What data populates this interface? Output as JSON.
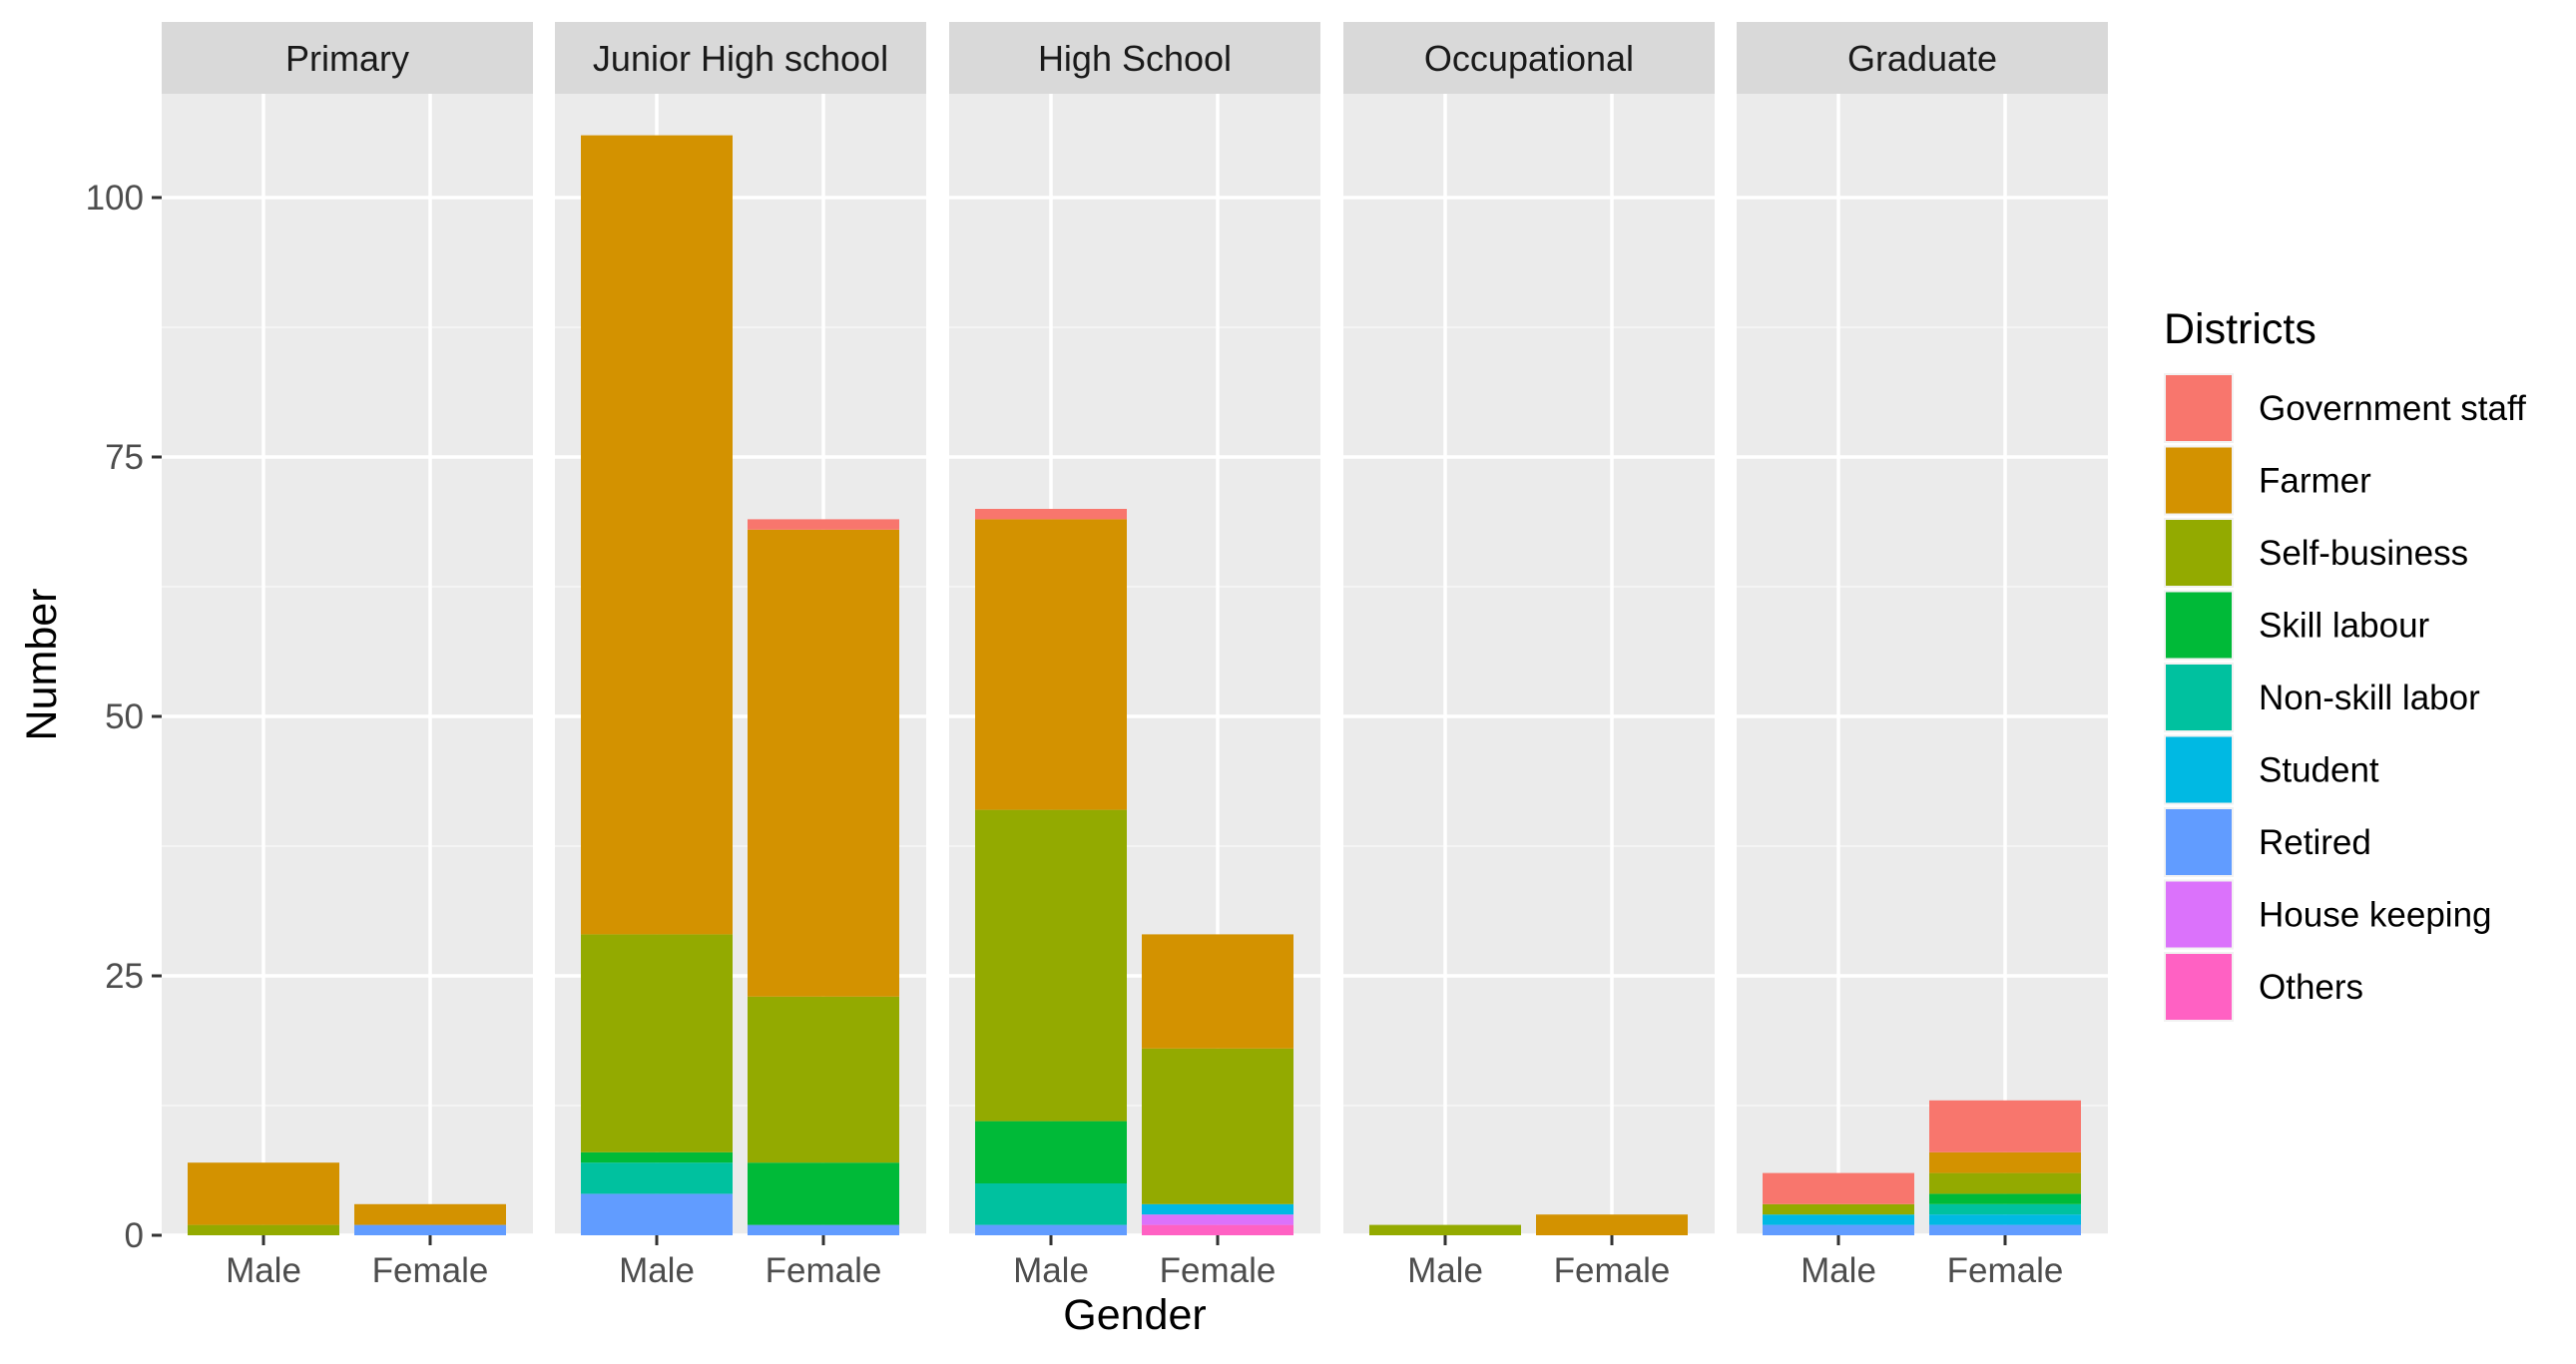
{
  "chart_data": {
    "type": "bar",
    "stacked": true,
    "facet_labels": [
      "Primary",
      "Junior High school",
      "High School",
      "Occupational",
      "Graduate"
    ],
    "categories": [
      "Male",
      "Female"
    ],
    "xlabel": "Gender",
    "ylabel": "Number",
    "ylim": [
      0,
      110
    ],
    "yticks": [
      0,
      25,
      50,
      75,
      100
    ],
    "yticklabels": [
      "0",
      "25",
      "50",
      "75",
      "100"
    ],
    "grid": true,
    "legend": {
      "title": "Districts",
      "placement": "right",
      "entries": [
        "Government staff",
        "Farmer",
        "Self-business",
        "Skill labour",
        "Non-skill labor",
        "Student",
        "Retired",
        "House keeping",
        "Others"
      ]
    },
    "colors": [
      "#F8766D",
      "#D39200",
      "#93AA00",
      "#00BA38",
      "#00C19F",
      "#00B9E3",
      "#619CFF",
      "#DB72FB",
      "#FF61C3"
    ],
    "facets": [
      {
        "label": "Primary",
        "bars": [
          {
            "x": "Male",
            "values": [
              0,
              6,
              1,
              0,
              0,
              0,
              0,
              0,
              0
            ]
          },
          {
            "x": "Female",
            "values": [
              0,
              2,
              0,
              0,
              0,
              0,
              1,
              0,
              0
            ]
          }
        ]
      },
      {
        "label": "Junior High school",
        "bars": [
          {
            "x": "Male",
            "values": [
              0,
              77,
              21,
              1,
              3,
              0,
              4,
              0,
              0
            ]
          },
          {
            "x": "Female",
            "values": [
              1,
              45,
              16,
              6,
              0,
              0,
              1,
              0,
              0
            ]
          }
        ]
      },
      {
        "label": "High School",
        "bars": [
          {
            "x": "Male",
            "values": [
              1,
              28,
              30,
              6,
              4,
              0,
              1,
              0,
              0
            ]
          },
          {
            "x": "Female",
            "values": [
              0,
              11,
              15,
              0,
              0,
              1,
              0,
              1,
              1
            ]
          }
        ]
      },
      {
        "label": "Occupational",
        "bars": [
          {
            "x": "Male",
            "values": [
              0,
              0,
              1,
              0,
              0,
              0,
              0,
              0,
              0
            ]
          },
          {
            "x": "Female",
            "values": [
              0,
              2,
              0,
              0,
              0,
              0,
              0,
              0,
              0
            ]
          }
        ]
      },
      {
        "label": "Graduate",
        "bars": [
          {
            "x": "Male",
            "values": [
              3,
              0,
              1,
              0,
              0,
              1,
              1,
              0,
              0
            ]
          },
          {
            "x": "Female",
            "values": [
              5,
              2,
              2,
              1,
              1,
              1,
              1,
              0,
              0
            ]
          }
        ]
      }
    ]
  }
}
